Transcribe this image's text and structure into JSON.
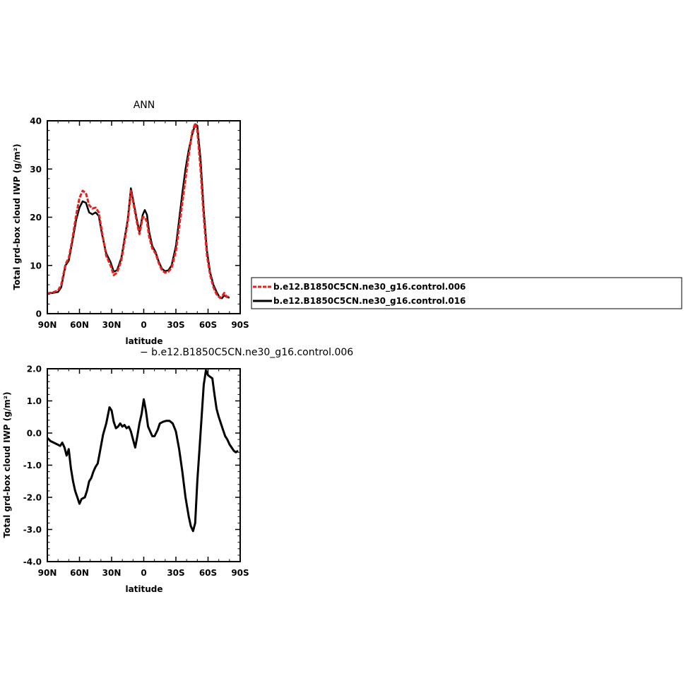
{
  "chart_data": [
    {
      "type": "line",
      "title": "ANN",
      "xlabel": "latitude",
      "ylabel": "Total grd-box cloud IWP (g/m²)",
      "xticks": [
        "90N",
        "60N",
        "30N",
        "0",
        "30S",
        "60S",
        "90S"
      ],
      "xtick_values": [
        -90,
        -60,
        -30,
        0,
        30,
        60,
        90
      ],
      "yticks": [
        "0",
        "10",
        "20",
        "30",
        "40"
      ],
      "xlim": [
        -90,
        90
      ],
      "ylim": [
        0,
        40
      ],
      "x_note": "north = negative in list, plotted left to right 90N..90S",
      "series": [
        {
          "name": "b.e12.B1850C5CN.ne30_g16.control.006",
          "color": "#e8211c",
          "points": [
            [
              -90,
              4.2
            ],
            [
              -85,
              4.4
            ],
            [
              -80,
              4.8
            ],
            [
              -77,
              6
            ],
            [
              -73,
              10.3
            ],
            [
              -70,
              11.5
            ],
            [
              -67,
              15
            ],
            [
              -63,
              20.5
            ],
            [
              -60,
              24
            ],
            [
              -57,
              25.5
            ],
            [
              -54,
              25
            ],
            [
              -51,
              22.5
            ],
            [
              -48,
              21.8
            ],
            [
              -45,
              22
            ],
            [
              -42,
              21
            ],
            [
              -39,
              17
            ],
            [
              -35,
              12
            ],
            [
              -31,
              10
            ],
            [
              -28,
              8
            ],
            [
              -25,
              8.5
            ],
            [
              -21,
              11
            ],
            [
              -18,
              15
            ],
            [
              -15,
              19
            ],
            [
              -12,
              25.5
            ],
            [
              -9,
              22
            ],
            [
              -6,
              18.5
            ],
            [
              -4,
              16.5
            ],
            [
              -1,
              20
            ],
            [
              1,
              20
            ],
            [
              3,
              19
            ],
            [
              5,
              16
            ],
            [
              8,
              13.5
            ],
            [
              11,
              12.5
            ],
            [
              14,
              10.5
            ],
            [
              17,
              9
            ],
            [
              20,
              8.5
            ],
            [
              23,
              8.7
            ],
            [
              26,
              9.5
            ],
            [
              30,
              13
            ],
            [
              33,
              18
            ],
            [
              36,
              23
            ],
            [
              39,
              28
            ],
            [
              42,
              33
            ],
            [
              45,
              37.5
            ],
            [
              48,
              39.5
            ],
            [
              50,
              38
            ],
            [
              53,
              30
            ],
            [
              56,
              20
            ],
            [
              59,
              12
            ],
            [
              62,
              8
            ],
            [
              65,
              5.5
            ],
            [
              68,
              4
            ],
            [
              71,
              3.3
            ],
            [
              73,
              3.5
            ],
            [
              75,
              4.3
            ],
            [
              77,
              3.6
            ],
            [
              80,
              3.4
            ]
          ]
        },
        {
          "name": "b.e12.B1850C5CN.ne30_g16.control.016",
          "color": "#000000",
          "points": [
            [
              -90,
              4.2
            ],
            [
              -85,
              4.3
            ],
            [
              -80,
              4.5
            ],
            [
              -77,
              5.5
            ],
            [
              -73,
              10
            ],
            [
              -70,
              11
            ],
            [
              -67,
              14.5
            ],
            [
              -63,
              19.5
            ],
            [
              -60,
              22
            ],
            [
              -57,
              23.3
            ],
            [
              -54,
              23
            ],
            [
              -51,
              21
            ],
            [
              -48,
              20.6
            ],
            [
              -45,
              21
            ],
            [
              -42,
              20.3
            ],
            [
              -39,
              16.5
            ],
            [
              -35,
              12.5
            ],
            [
              -31,
              10.7
            ],
            [
              -28,
              8.7
            ],
            [
              -25,
              9
            ],
            [
              -21,
              11.5
            ],
            [
              -18,
              15.5
            ],
            [
              -15,
              19.5
            ],
            [
              -12,
              26
            ],
            [
              -9,
              22.5
            ],
            [
              -6,
              19
            ],
            [
              -4,
              17
            ],
            [
              -1,
              20.5
            ],
            [
              1,
              21.5
            ],
            [
              3,
              20.5
            ],
            [
              5,
              17
            ],
            [
              8,
              14
            ],
            [
              11,
              12.8
            ],
            [
              14,
              10.8
            ],
            [
              17,
              9.3
            ],
            [
              20,
              8.8
            ],
            [
              23,
              9
            ],
            [
              26,
              10
            ],
            [
              30,
              14
            ],
            [
              33,
              19.5
            ],
            [
              36,
              25
            ],
            [
              39,
              30
            ],
            [
              42,
              34
            ],
            [
              45,
              37
            ],
            [
              48,
              39.3
            ],
            [
              50,
              39
            ],
            [
              53,
              32
            ],
            [
              56,
              21.5
            ],
            [
              59,
              13
            ],
            [
              62,
              8.5
            ],
            [
              65,
              6
            ],
            [
              68,
              4.5
            ],
            [
              71,
              3.3
            ],
            [
              73,
              3.2
            ],
            [
              75,
              3.8
            ],
            [
              77,
              3.5
            ],
            [
              80,
              3.3
            ]
          ]
        }
      ]
    },
    {
      "type": "line",
      "title": "− b.e12.B1850C5CN.ne30_g16.control.006",
      "xlabel": "latitude",
      "ylabel": "Total grd-box cloud IWP (g/m²)",
      "xticks": [
        "90N",
        "60N",
        "30N",
        "0",
        "30S",
        "60S",
        "90S"
      ],
      "xtick_values": [
        -90,
        -60,
        -30,
        0,
        30,
        60,
        90
      ],
      "yticks": [
        "-4.0",
        "-3.0",
        "-2.0",
        "-1.0",
        "0.0",
        "1.0",
        "2.0"
      ],
      "xlim": [
        -90,
        90
      ],
      "ylim": [
        -4,
        2
      ],
      "series": [
        {
          "color": "#000000",
          "points": [
            [
              -90,
              -0.15
            ],
            [
              -87,
              -0.25
            ],
            [
              -84,
              -0.3
            ],
            [
              -81,
              -0.35
            ],
            [
              -78,
              -0.4
            ],
            [
              -76,
              -0.3
            ],
            [
              -74,
              -0.45
            ],
            [
              -72,
              -0.7
            ],
            [
              -70,
              -0.5
            ],
            [
              -68,
              -1.1
            ],
            [
              -66,
              -1.5
            ],
            [
              -64,
              -1.8
            ],
            [
              -62,
              -2.0
            ],
            [
              -60,
              -2.2
            ],
            [
              -58,
              -2.05
            ],
            [
              -55,
              -2.0
            ],
            [
              -53,
              -1.8
            ],
            [
              -51,
              -1.5
            ],
            [
              -49,
              -1.4
            ],
            [
              -47,
              -1.2
            ],
            [
              -45,
              -1.05
            ],
            [
              -43,
              -0.95
            ],
            [
              -41,
              -0.6
            ],
            [
              -38,
              -0.05
            ],
            [
              -35,
              0.3
            ],
            [
              -32,
              0.8
            ],
            [
              -30,
              0.7
            ],
            [
              -28,
              0.35
            ],
            [
              -26,
              0.15
            ],
            [
              -24,
              0.2
            ],
            [
              -22,
              0.3
            ],
            [
              -20,
              0.2
            ],
            [
              -18,
              0.25
            ],
            [
              -16,
              0.15
            ],
            [
              -14,
              0.2
            ],
            [
              -12,
              0.05
            ],
            [
              -10,
              -0.2
            ],
            [
              -8,
              -0.45
            ],
            [
              -6,
              -0.1
            ],
            [
              -4,
              0.3
            ],
            [
              -2,
              0.6
            ],
            [
              0,
              1.05
            ],
            [
              2,
              0.7
            ],
            [
              4,
              0.2
            ],
            [
              6,
              0.05
            ],
            [
              8,
              -0.1
            ],
            [
              10,
              -0.1
            ],
            [
              13,
              0.1
            ],
            [
              15,
              0.3
            ],
            [
              18,
              0.35
            ],
            [
              21,
              0.38
            ],
            [
              24,
              0.38
            ],
            [
              27,
              0.3
            ],
            [
              30,
              0.05
            ],
            [
              33,
              -0.5
            ],
            [
              36,
              -1.2
            ],
            [
              39,
              -2.0
            ],
            [
              42,
              -2.6
            ],
            [
              44,
              -2.9
            ],
            [
              46,
              -3.05
            ],
            [
              48,
              -2.8
            ],
            [
              50,
              -1.5
            ],
            [
              52,
              -0.5
            ],
            [
              54,
              0.5
            ],
            [
              56,
              1.5
            ],
            [
              58,
              1.95
            ],
            [
              60,
              1.8
            ],
            [
              62,
              1.75
            ],
            [
              64,
              1.7
            ],
            [
              66,
              1.2
            ],
            [
              68,
              0.75
            ],
            [
              70,
              0.5
            ],
            [
              72,
              0.3
            ],
            [
              74,
              0.1
            ],
            [
              76,
              -0.1
            ],
            [
              78,
              -0.2
            ],
            [
              80,
              -0.35
            ],
            [
              82,
              -0.45
            ],
            [
              84,
              -0.55
            ],
            [
              86,
              -0.6
            ],
            [
              88,
              -0.55
            ]
          ]
        }
      ]
    }
  ],
  "legend": {
    "items": [
      {
        "label": "b.e12.B1850C5CN.ne30_g16.control.006",
        "color": "#e8211c",
        "dashed": true
      },
      {
        "label": "b.e12.B1850C5CN.ne30_g16.control.016",
        "color": "#000000",
        "dashed": false
      }
    ]
  }
}
